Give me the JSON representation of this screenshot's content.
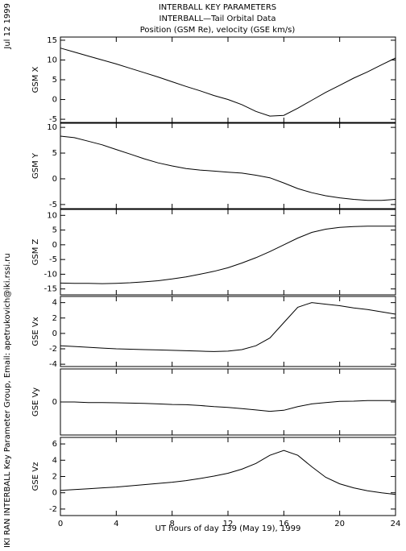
{
  "header": {
    "lines": [
      "INTERBALL KEY PARAMETERS",
      "INTERBALL—Tail Orbital Data",
      "Position (GSM Re), velocity (GSE km/s)"
    ],
    "date": "Jul 12 1999",
    "credit": "IKI RAN INTERBALL Key Parameter Group, Email: apetrukovich@iki.rssi.ru"
  },
  "x_axis": {
    "label": "UT hours of day 139 (May 19), 1999",
    "xlim": [
      0,
      24
    ],
    "xticks": [
      0,
      4,
      8,
      12,
      16,
      20,
      24
    ],
    "x": [
      0,
      1,
      2,
      3,
      4,
      5,
      6,
      7,
      8,
      9,
      10,
      11,
      12,
      13,
      14,
      15,
      16,
      17,
      18,
      19,
      20,
      21,
      22,
      23,
      24
    ]
  },
  "chart_data": [
    {
      "type": "line",
      "y_label": "GSM X",
      "ylim": [
        -5.8,
        15.8
      ],
      "yticks": [
        -5,
        0,
        5,
        10,
        15
      ],
      "color": "#000000",
      "values": [
        13,
        12,
        11,
        10,
        9,
        7.9,
        6.8,
        5.7,
        4.5,
        3.3,
        2.2,
        1,
        0,
        -1.3,
        -3,
        -4.2,
        -4,
        -2.2,
        -0.2,
        1.8,
        3.6,
        5.4,
        7,
        8.8,
        10.5
      ]
    },
    {
      "type": "line",
      "y_label": "GSM Y",
      "ylim": [
        -5.8,
        10.8
      ],
      "yticks": [
        -5,
        0,
        5,
        10
      ],
      "color": "#000000",
      "values": [
        8.3,
        8,
        7.3,
        6.6,
        5.7,
        4.8,
        3.9,
        3.1,
        2.5,
        2,
        1.7,
        1.5,
        1.3,
        1.1,
        0.7,
        0.2,
        -0.8,
        -1.9,
        -2.7,
        -3.3,
        -3.7,
        -4,
        -4.2,
        -4.2,
        -4
      ]
    },
    {
      "type": "line",
      "y_label": "GSM Z",
      "ylim": [
        -17,
        12
      ],
      "yticks": [
        -15,
        -10,
        -5,
        0,
        5,
        10
      ],
      "color": "#000000",
      "values": [
        -13,
        -13.1,
        -13.1,
        -13.2,
        -13.1,
        -12.9,
        -12.6,
        -12.2,
        -11.6,
        -10.9,
        -10,
        -9,
        -7.8,
        -6.2,
        -4.4,
        -2.3,
        0,
        2.3,
        4.2,
        5.3,
        5.9,
        6.2,
        6.3,
        6.3,
        6.3
      ]
    },
    {
      "type": "line",
      "y_label": "GSE Vx",
      "ylim": [
        -4.3,
        4.8
      ],
      "yticks": [
        -4,
        -2,
        0,
        2,
        4
      ],
      "color": "#000000",
      "values": [
        -1.6,
        -1.7,
        -1.8,
        -1.9,
        -2,
        -2.05,
        -2.1,
        -2.15,
        -2.2,
        -2.25,
        -2.3,
        -2.35,
        -2.3,
        -2.1,
        -1.6,
        -0.6,
        1.4,
        3.4,
        4,
        3.8,
        3.6,
        3.3,
        3.1,
        2.8,
        2.5
      ]
    },
    {
      "type": "line",
      "y_label": "GSE Vy",
      "ylim": [
        -1.2,
        1.2
      ],
      "yticks": [
        0
      ],
      "color": "#000000",
      "values": [
        0,
        0,
        -0.02,
        -0.02,
        -0.03,
        -0.04,
        -0.05,
        -0.07,
        -0.09,
        -0.1,
        -0.13,
        -0.17,
        -0.2,
        -0.24,
        -0.29,
        -0.34,
        -0.3,
        -0.17,
        -0.07,
        -0.02,
        0.02,
        0.03,
        0.05,
        0.05,
        0.05
      ]
    },
    {
      "type": "line",
      "y_label": "GSE Vz",
      "ylim": [
        -2.8,
        6.8
      ],
      "yticks": [
        -2,
        0,
        2,
        4,
        6
      ],
      "color": "#000000",
      "values": [
        0.3,
        0.4,
        0.5,
        0.6,
        0.7,
        0.85,
        1,
        1.15,
        1.3,
        1.5,
        1.75,
        2.05,
        2.4,
        2.9,
        3.6,
        4.6,
        5.2,
        4.6,
        3.2,
        1.9,
        1.1,
        0.6,
        0.25,
        0,
        -0.2
      ]
    }
  ]
}
